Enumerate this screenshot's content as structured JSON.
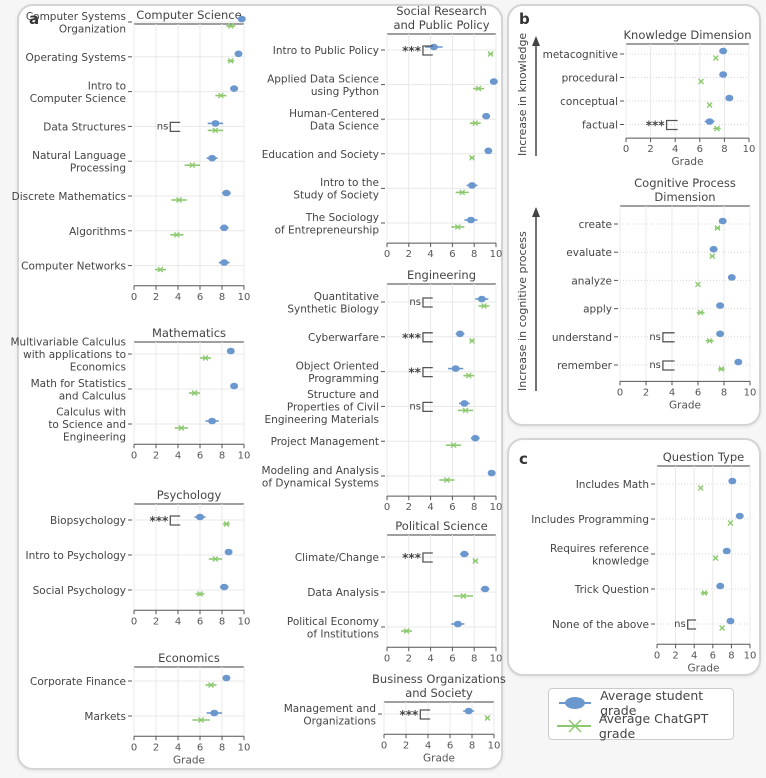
{
  "panels": {
    "a": {
      "letter": "a"
    },
    "b": {
      "letter": "b"
    },
    "c": {
      "letter": "c"
    }
  },
  "colors": {
    "student": "#6b97cf",
    "chatgpt": "#8cc96e",
    "axis": "#555555",
    "grid": "#e8e8e8",
    "bracket": "#555555"
  },
  "legend": {
    "student_label": "Average student grade",
    "chatgpt_label": "Average ChatGPT grade"
  },
  "chart_data": [
    {
      "id": "cs",
      "type": "dot-range",
      "panel": "a",
      "title": "Computer Science",
      "xlabel": "",
      "xlim": [
        0,
        10
      ],
      "xticks": [
        0,
        2,
        4,
        6,
        8,
        10
      ],
      "categories": [
        "Computer Systems|Organization",
        "Operating Systems",
        "Intro to|Computer Science",
        "Data Structures",
        "Natural Language|Processing",
        "Discrete Mathematics",
        "Algorithms",
        "Computer Networks"
      ],
      "series": [
        {
          "name": "Average student grade",
          "values": [
            9.8,
            9.5,
            9.1,
            7.4,
            7.1,
            8.4,
            8.2,
            8.2
          ],
          "err": [
            0.1,
            0.15,
            0.3,
            0.7,
            0.5,
            0.4,
            0.4,
            0.5
          ]
        },
        {
          "name": "Average ChatGPT grade",
          "values": [
            8.8,
            8.8,
            7.9,
            7.4,
            5.3,
            4.1,
            3.9,
            2.4
          ],
          "err": [
            0.4,
            0.3,
            0.5,
            0.7,
            0.7,
            0.7,
            0.6,
            0.5
          ]
        }
      ],
      "significance": [
        null,
        null,
        null,
        "ns",
        null,
        null,
        null,
        null
      ]
    },
    {
      "id": "math",
      "type": "dot-range",
      "panel": "a",
      "title": "Mathematics",
      "xlabel": "",
      "xlim": [
        0,
        10
      ],
      "xticks": [
        0,
        2,
        4,
        6,
        8,
        10
      ],
      "categories": [
        "Multivariable Calculus|with applications to|Economics",
        "Math for Statistics|and Calculus",
        "Calculus with|to Science and|Engineering"
      ],
      "series": [
        {
          "name": "Average student grade",
          "values": [
            8.8,
            9.1,
            7.1
          ],
          "err": [
            0.3,
            0.2,
            0.6
          ]
        },
        {
          "name": "Average ChatGPT grade",
          "values": [
            6.5,
            5.5,
            4.3
          ],
          "err": [
            0.5,
            0.5,
            0.6
          ]
        }
      ],
      "significance": [
        null,
        null,
        null
      ]
    },
    {
      "id": "psych",
      "type": "dot-range",
      "panel": "a",
      "title": "Psychology",
      "xlabel": "",
      "xlim": [
        0,
        10
      ],
      "xticks": [
        0,
        2,
        4,
        6,
        8,
        10
      ],
      "categories": [
        "Biopsychology",
        "Intro to Psychology",
        "Social Psychology"
      ],
      "series": [
        {
          "name": "Average student grade",
          "values": [
            6.0,
            8.6,
            8.2
          ],
          "err": [
            0.5,
            0.2,
            0.4
          ]
        },
        {
          "name": "Average ChatGPT grade",
          "values": [
            8.4,
            7.4,
            6.0
          ],
          "err": [
            0.3,
            0.6,
            0.4
          ]
        }
      ],
      "significance": [
        "***",
        null,
        null
      ]
    },
    {
      "id": "econ",
      "type": "dot-range",
      "panel": "a",
      "title": "Economics",
      "xlabel": "Grade",
      "xlim": [
        0,
        10
      ],
      "xticks": [
        0,
        2,
        4,
        6,
        8,
        10
      ],
      "categories": [
        "Corporate Finance",
        "Markets"
      ],
      "series": [
        {
          "name": "Average student grade",
          "values": [
            8.4,
            7.3
          ],
          "err": [
            0.3,
            0.7
          ]
        },
        {
          "name": "Average ChatGPT grade",
          "values": [
            7.0,
            6.1
          ],
          "err": [
            0.5,
            0.8
          ]
        }
      ],
      "significance": [
        null,
        null
      ]
    },
    {
      "id": "srpp",
      "type": "dot-range",
      "panel": "a",
      "title": "Social Research|and Public Policy",
      "xlabel": "",
      "xlim": [
        0,
        10
      ],
      "xticks": [
        0,
        2,
        4,
        6,
        8,
        10
      ],
      "categories": [
        "Intro to Public Policy",
        "Applied Data Science|using Python",
        "Human-Centered|Data Science",
        "Education and Society",
        "Intro to the|Study of Society",
        "The Sociology|of Entrepreneurship"
      ],
      "series": [
        {
          "name": "Average student grade",
          "values": [
            4.3,
            9.8,
            9.1,
            9.3,
            7.8,
            7.7
          ],
          "err": [
            0.8,
            0.1,
            0.3,
            0.15,
            0.5,
            0.6
          ]
        },
        {
          "name": "Average ChatGPT grade",
          "values": [
            9.5,
            8.4,
            8.1,
            7.8,
            6.9,
            6.5
          ],
          "err": [
            0.2,
            0.5,
            0.5,
            0.2,
            0.6,
            0.6
          ]
        }
      ],
      "significance": [
        "***",
        null,
        null,
        null,
        null,
        null
      ]
    },
    {
      "id": "eng",
      "type": "dot-range",
      "panel": "a",
      "title": "Engineering",
      "xlabel": "",
      "xlim": [
        0,
        10
      ],
      "xticks": [
        0,
        2,
        4,
        6,
        8,
        10
      ],
      "categories": [
        "Quantitative|Synthetic Biology",
        "Cyberwarfare",
        "Object Oriented|Programming",
        "Structure and|Properties of Civil|Engineering Materials",
        "Project Management",
        "Modeling and Analysis|of Dynamical Systems"
      ],
      "series": [
        {
          "name": "Average student grade",
          "values": [
            8.7,
            6.7,
            6.3,
            7.1,
            8.1,
            9.6
          ],
          "err": [
            0.6,
            0.4,
            0.7,
            0.5,
            0.4,
            0.15
          ]
        },
        {
          "name": "Average ChatGPT grade",
          "values": [
            8.9,
            7.8,
            7.5,
            7.2,
            6.1,
            5.5
          ],
          "err": [
            0.5,
            0.2,
            0.5,
            0.7,
            0.7,
            0.7
          ]
        }
      ],
      "significance": [
        "ns",
        "***",
        "**",
        "ns",
        null,
        null
      ]
    },
    {
      "id": "polsci",
      "type": "dot-range",
      "panel": "a",
      "title": "Political Science",
      "xlabel": "",
      "xlim": [
        0,
        10
      ],
      "xticks": [
        0,
        2,
        4,
        6,
        8,
        10
      ],
      "categories": [
        "Climate/Change",
        "Data Analysis",
        "Political Economy|of Institutions"
      ],
      "series": [
        {
          "name": "Average student grade",
          "values": [
            7.1,
            9.0,
            6.5
          ],
          "err": [
            0.4,
            0.4,
            0.6
          ]
        },
        {
          "name": "Average ChatGPT grade",
          "values": [
            8.1,
            7.0,
            1.8
          ],
          "err": [
            0.2,
            0.9,
            0.5
          ]
        }
      ],
      "significance": [
        "***",
        null,
        null
      ]
    },
    {
      "id": "bos",
      "type": "dot-range",
      "panel": "a",
      "title": "Business Organizations|and Society",
      "xlabel": "Grade",
      "xlim": [
        0,
        10
      ],
      "xticks": [
        0,
        2,
        4,
        6,
        8,
        10
      ],
      "categories": [
        "Management and|Organizations"
      ],
      "series": [
        {
          "name": "Average student grade",
          "values": [
            7.7
          ],
          "err": [
            0.5
          ]
        },
        {
          "name": "Average ChatGPT grade",
          "values": [
            9.4
          ],
          "err": [
            0.15
          ]
        }
      ],
      "significance": [
        "***"
      ]
    },
    {
      "id": "knowledge",
      "type": "dot-range",
      "panel": "b",
      "title": "Knowledge Dimension",
      "xlabel": "Grade",
      "xlim": [
        0,
        10
      ],
      "xticks": [
        0,
        2,
        4,
        6,
        8,
        10
      ],
      "side_arrow_label": "Increase in knowledge",
      "categories": [
        "metacognitive",
        "procedural",
        "conceptual",
        "factual"
      ],
      "series": [
        {
          "name": "Average student grade",
          "values": [
            7.9,
            7.9,
            8.4,
            6.8
          ],
          "err": [
            0.1,
            0.1,
            0.1,
            0.4
          ]
        },
        {
          "name": "Average ChatGPT grade",
          "values": [
            7.3,
            6.1,
            6.8,
            7.4
          ],
          "err": [
            0.1,
            0.1,
            0.1,
            0.3
          ]
        }
      ],
      "significance": [
        null,
        null,
        null,
        "***"
      ]
    },
    {
      "id": "cognitive",
      "type": "dot-range",
      "panel": "b",
      "title": "Cognitive Process|Dimension",
      "xlabel": "Grade",
      "xlim": [
        0,
        10
      ],
      "xticks": [
        0,
        2,
        4,
        6,
        8,
        10
      ],
      "side_arrow_label": "Increase in cognitive process",
      "categories": [
        "create",
        "evaluate",
        "analyze",
        "apply",
        "understand",
        "remember"
      ],
      "series": [
        {
          "name": "Average student grade",
          "values": [
            7.9,
            7.2,
            8.6,
            7.7,
            7.7,
            9.1
          ],
          "err": [
            0.2,
            0.15,
            0.1,
            0.2,
            0.2,
            0.1
          ]
        },
        {
          "name": "Average ChatGPT grade",
          "values": [
            7.5,
            7.1,
            6.0,
            6.2,
            6.9,
            7.8
          ],
          "err": [
            0.2,
            0.15,
            0.1,
            0.3,
            0.3,
            0.25
          ]
        }
      ],
      "significance": [
        null,
        null,
        null,
        null,
        "ns",
        "ns"
      ]
    },
    {
      "id": "qtype",
      "type": "dot-range",
      "panel": "c",
      "title": "Question Type",
      "xlabel": "Grade",
      "xlim": [
        0,
        10
      ],
      "xticks": [
        0,
        2,
        4,
        6,
        8,
        10
      ],
      "categories": [
        "Includes Math",
        "Includes Programming",
        "Requires reference|knowledge",
        "Trick Question",
        "None of the above"
      ],
      "series": [
        {
          "name": "Average student grade",
          "values": [
            8.1,
            8.9,
            7.5,
            6.8,
            7.9
          ],
          "err": [
            0.1,
            0.1,
            0.1,
            0.4,
            0.1
          ]
        },
        {
          "name": "Average ChatGPT grade",
          "values": [
            4.7,
            7.9,
            6.3,
            5.1,
            7.0
          ],
          "err": [
            0.1,
            0.1,
            0.15,
            0.4,
            0.15
          ]
        }
      ],
      "significance": [
        null,
        null,
        null,
        null,
        "ns"
      ]
    }
  ]
}
